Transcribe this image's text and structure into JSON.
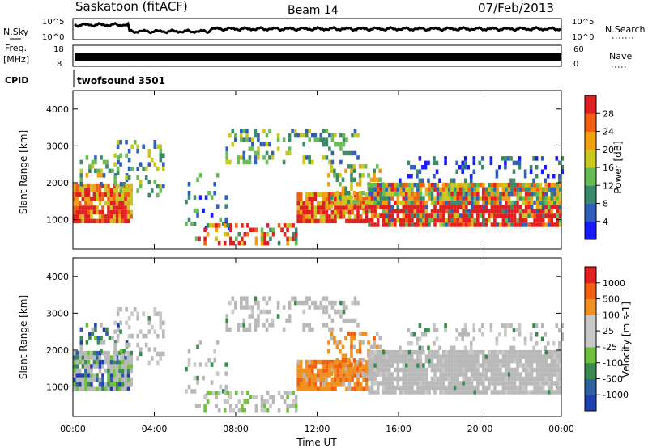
{
  "header": {
    "station": "Saskatoon (fitACF)",
    "beam": "Beam 14",
    "date": "07/Feb/2013"
  },
  "top_panels": {
    "nsky_label": "N.Sky",
    "nsky_ticks": [
      "10^5",
      "10^0"
    ],
    "nsearch_label": "N.Search",
    "nsearch_ticks": [
      "10^5",
      "10^0"
    ],
    "freq_label_1": "Freq.",
    "freq_label_2": "[MHz]",
    "freq_ticks": [
      "18",
      "8"
    ],
    "nave_label": "Nave",
    "nave_ticks": [
      "60",
      "0"
    ],
    "cpid_label": "CPID",
    "cpid_value": "twofsound 3501"
  },
  "colors": {
    "power": [
      "#1a1aff",
      "#2f5fb8",
      "#3a8a6a",
      "#66bb55",
      "#c8c820",
      "#f0a010",
      "#f06010",
      "#e02020"
    ],
    "velocity": [
      "#2040b0",
      "#3060a0",
      "#3a8a50",
      "#70c040",
      "#c8c8c8",
      "#c8c8c8",
      "#f09020",
      "#f06010",
      "#e02020"
    ],
    "ground_scatter": "#b8b8b8"
  },
  "chart_data": [
    {
      "type": "heatmap",
      "name": "power",
      "ylabel": "Slant Range [km]",
      "ylim": [
        200,
        4500
      ],
      "yticks": [
        "1000",
        "2000",
        "3000",
        "4000"
      ],
      "xlim": [
        0,
        24
      ],
      "xtick_labels": [
        "00:00",
        "04:00",
        "08:00",
        "12:00",
        "16:00",
        "20:00",
        "00:00"
      ],
      "colorbar": {
        "label": "Power [dB]",
        "range": [
          0,
          32
        ],
        "ticks": [
          "28",
          "24",
          "20",
          "16",
          "12",
          "8",
          "4"
        ]
      }
    },
    {
      "type": "heatmap",
      "name": "velocity",
      "ylabel": "Slant Range [km]",
      "ylim": [
        200,
        4500
      ],
      "yticks": [
        "1000",
        "2000",
        "3000",
        "4000"
      ],
      "xlim": [
        0,
        24
      ],
      "xlabel": "Time UT",
      "xtick_labels": [
        "00:00",
        "04:00",
        "08:00",
        "12:00",
        "16:00",
        "20:00",
        "00:00"
      ],
      "colorbar": {
        "label": "Velocity [m s-1]",
        "ticks": [
          "1000",
          "500",
          "100",
          "25",
          "-25",
          "-100",
          "-500",
          "-1000"
        ]
      }
    }
  ]
}
